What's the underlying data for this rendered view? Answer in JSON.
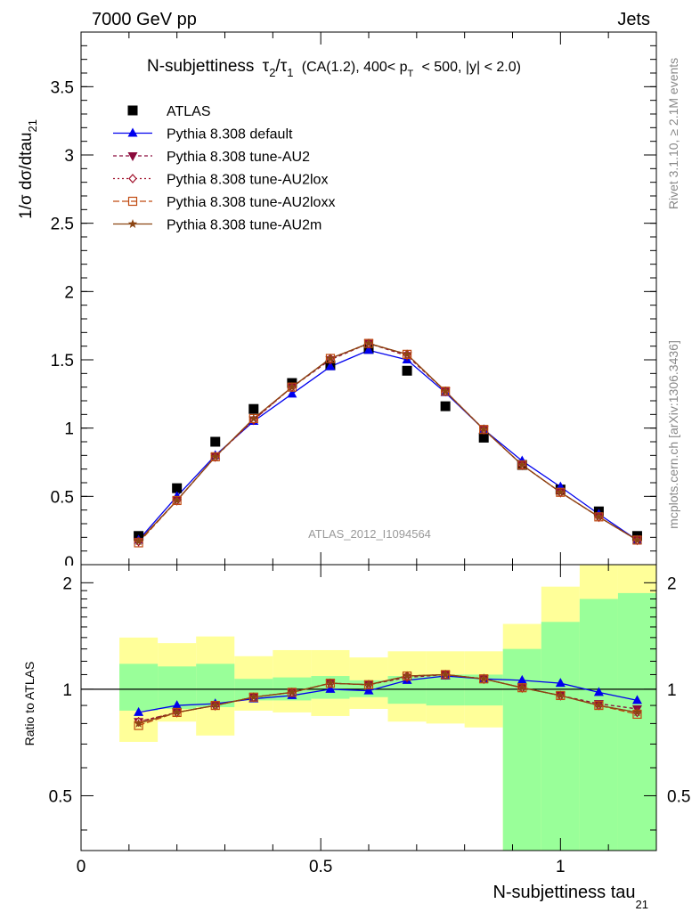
{
  "header": {
    "left": "7000 GeV pp",
    "right": "Jets"
  },
  "title": {
    "main": "N-subjettiness",
    "tau2": "τ",
    "sub2": "2",
    "slash": "/",
    "tau1": "τ",
    "sub1": "1",
    "cuts_a": "(CA(1.2), 400< p",
    "cuts_sub": "T",
    "cuts_b": "< 500, |y| < 2.0)"
  },
  "side_labels": {
    "rivet": "Rivet 3.1.10, ≥ 2.1M events",
    "mcplots": "mcplots.cern.ch [arXiv:1306.3436]"
  },
  "watermark": "ATLAS_2012_I1094564",
  "ylabel_main": {
    "text": "1/σ dσ/dtau",
    "sub": "21"
  },
  "ylabel_ratio": "Ratio to ATLAS",
  "xlabel": {
    "text": "N-subjettiness tau",
    "sub": "21"
  },
  "colors": {
    "atlas": "#000000",
    "default": "#0000ee",
    "au2": "#8b0a3c",
    "au2lox": "#a0102a",
    "au2loxx": "#c04a10",
    "au2m": "#8b4513",
    "band_inner": "#99ff99",
    "band_outer": "#ffff99"
  },
  "legend": [
    {
      "label": "ATLAS",
      "key": "atlas"
    },
    {
      "label": "Pythia 8.308 default",
      "key": "default"
    },
    {
      "label": "Pythia 8.308 tune-AU2",
      "key": "au2"
    },
    {
      "label": "Pythia 8.308 tune-AU2lox",
      "key": "au2lox"
    },
    {
      "label": "Pythia 8.308 tune-AU2loxx",
      "key": "au2loxx"
    },
    {
      "label": "Pythia 8.308 tune-AU2m",
      "key": "au2m"
    }
  ],
  "chart_data": [
    {
      "type": "scatter",
      "panel": "main",
      "xlim": [
        0,
        1.2
      ],
      "ylim": [
        0,
        3.9
      ],
      "xticks": [
        "0",
        "0.5",
        "1"
      ],
      "yticks": [
        "0.5",
        "1",
        "1.5",
        "2",
        "2.5",
        "3",
        "3.5"
      ],
      "x": [
        0.12,
        0.2,
        0.28,
        0.36,
        0.44,
        0.52,
        0.6,
        0.68,
        0.76,
        0.84,
        0.92,
        1.0,
        1.08,
        1.16
      ],
      "series": [
        {
          "name": "ATLAS",
          "key": "atlas",
          "marker": "square",
          "values": [
            0.21,
            0.56,
            0.9,
            1.14,
            1.33,
            1.46,
            1.58,
            1.42,
            1.16,
            0.93,
            0.73,
            0.55,
            0.39,
            0.21
          ]
        },
        {
          "name": "Pythia 8.308 default",
          "key": "default",
          "marker": "triangle-up",
          "values": [
            0.18,
            0.5,
            0.8,
            1.05,
            1.25,
            1.45,
            1.57,
            1.5,
            1.26,
            0.99,
            0.76,
            0.57,
            0.37,
            0.18
          ]
        },
        {
          "name": "Pythia 8.308 tune-AU2",
          "key": "au2",
          "marker": "triangle-down",
          "values": [
            0.17,
            0.47,
            0.79,
            1.06,
            1.3,
            1.5,
            1.62,
            1.53,
            1.27,
            0.99,
            0.73,
            0.53,
            0.35,
            0.18
          ]
        },
        {
          "name": "Pythia 8.308 tune-AU2lox",
          "key": "au2lox",
          "marker": "diamond",
          "values": [
            0.17,
            0.47,
            0.79,
            1.06,
            1.3,
            1.51,
            1.62,
            1.54,
            1.27,
            0.99,
            0.73,
            0.53,
            0.35,
            0.18
          ]
        },
        {
          "name": "Pythia 8.308 tune-AU2loxx",
          "key": "au2loxx",
          "marker": "square-open",
          "values": [
            0.16,
            0.47,
            0.79,
            1.07,
            1.3,
            1.51,
            1.62,
            1.54,
            1.27,
            0.99,
            0.73,
            0.53,
            0.35,
            0.18
          ]
        },
        {
          "name": "Pythia 8.308 tune-AU2m",
          "key": "au2m",
          "marker": "star",
          "values": [
            0.17,
            0.47,
            0.79,
            1.07,
            1.3,
            1.51,
            1.62,
            1.54,
            1.27,
            0.99,
            0.73,
            0.53,
            0.35,
            0.18
          ]
        }
      ]
    },
    {
      "type": "line",
      "panel": "ratio",
      "xlim": [
        0,
        1.2
      ],
      "ylim": [
        0.35,
        2.25
      ],
      "yticks": [
        "0.5",
        "1",
        "2"
      ],
      "reference": 1,
      "bins": [
        0.08,
        0.16,
        0.24,
        0.32,
        0.4,
        0.48,
        0.56,
        0.64,
        0.72,
        0.8,
        0.88,
        0.96,
        1.04,
        1.12,
        1.2
      ],
      "band_inner": {
        "low": [
          0.87,
          0.88,
          0.89,
          0.93,
          0.93,
          0.94,
          0.95,
          0.91,
          0.9,
          0.9,
          0.35,
          0.35,
          0.35,
          0.35
        ],
        "high": [
          1.18,
          1.16,
          1.18,
          1.07,
          1.08,
          1.09,
          1.06,
          1.09,
          1.1,
          1.1,
          1.3,
          1.55,
          1.8,
          1.87
        ]
      },
      "band_outer": {
        "low": [
          0.71,
          0.81,
          0.74,
          0.87,
          0.86,
          0.84,
          0.88,
          0.81,
          0.8,
          0.78,
          0.35,
          0.35,
          0.35,
          0.35
        ],
        "high": [
          1.4,
          1.35,
          1.41,
          1.24,
          1.29,
          1.29,
          1.23,
          1.28,
          1.28,
          1.28,
          1.53,
          1.95,
          2.25,
          2.25
        ]
      },
      "x": [
        0.12,
        0.2,
        0.28,
        0.36,
        0.44,
        0.52,
        0.6,
        0.68,
        0.76,
        0.84,
        0.92,
        1.0,
        1.08,
        1.16
      ],
      "series": [
        {
          "name": "Pythia 8.308 default",
          "key": "default",
          "marker": "triangle-up",
          "values": [
            0.86,
            0.9,
            0.91,
            0.94,
            0.96,
            1.0,
            0.99,
            1.06,
            1.09,
            1.07,
            1.06,
            1.04,
            0.98,
            0.93
          ]
        },
        {
          "name": "Pythia 8.308 tune-AU2",
          "key": "au2",
          "marker": "triangle-down",
          "values": [
            0.81,
            0.86,
            0.9,
            0.95,
            0.98,
            1.04,
            1.03,
            1.08,
            1.1,
            1.07,
            1.01,
            0.96,
            0.91,
            0.88
          ]
        },
        {
          "name": "Pythia 8.308 tune-AU2lox",
          "key": "au2lox",
          "marker": "diamond",
          "values": [
            0.81,
            0.86,
            0.9,
            0.95,
            0.98,
            1.04,
            1.03,
            1.09,
            1.1,
            1.07,
            1.01,
            0.96,
            0.9,
            0.86
          ]
        },
        {
          "name": "Pythia 8.308 tune-AU2loxx",
          "key": "au2loxx",
          "marker": "square-open",
          "values": [
            0.79,
            0.86,
            0.9,
            0.95,
            0.98,
            1.04,
            1.03,
            1.09,
            1.1,
            1.07,
            1.01,
            0.96,
            0.9,
            0.85
          ]
        },
        {
          "name": "Pythia 8.308 tune-AU2m",
          "key": "au2m",
          "marker": "star",
          "values": [
            0.8,
            0.86,
            0.9,
            0.95,
            0.98,
            1.04,
            1.03,
            1.09,
            1.1,
            1.07,
            1.01,
            0.96,
            0.9,
            0.86
          ]
        }
      ]
    }
  ]
}
